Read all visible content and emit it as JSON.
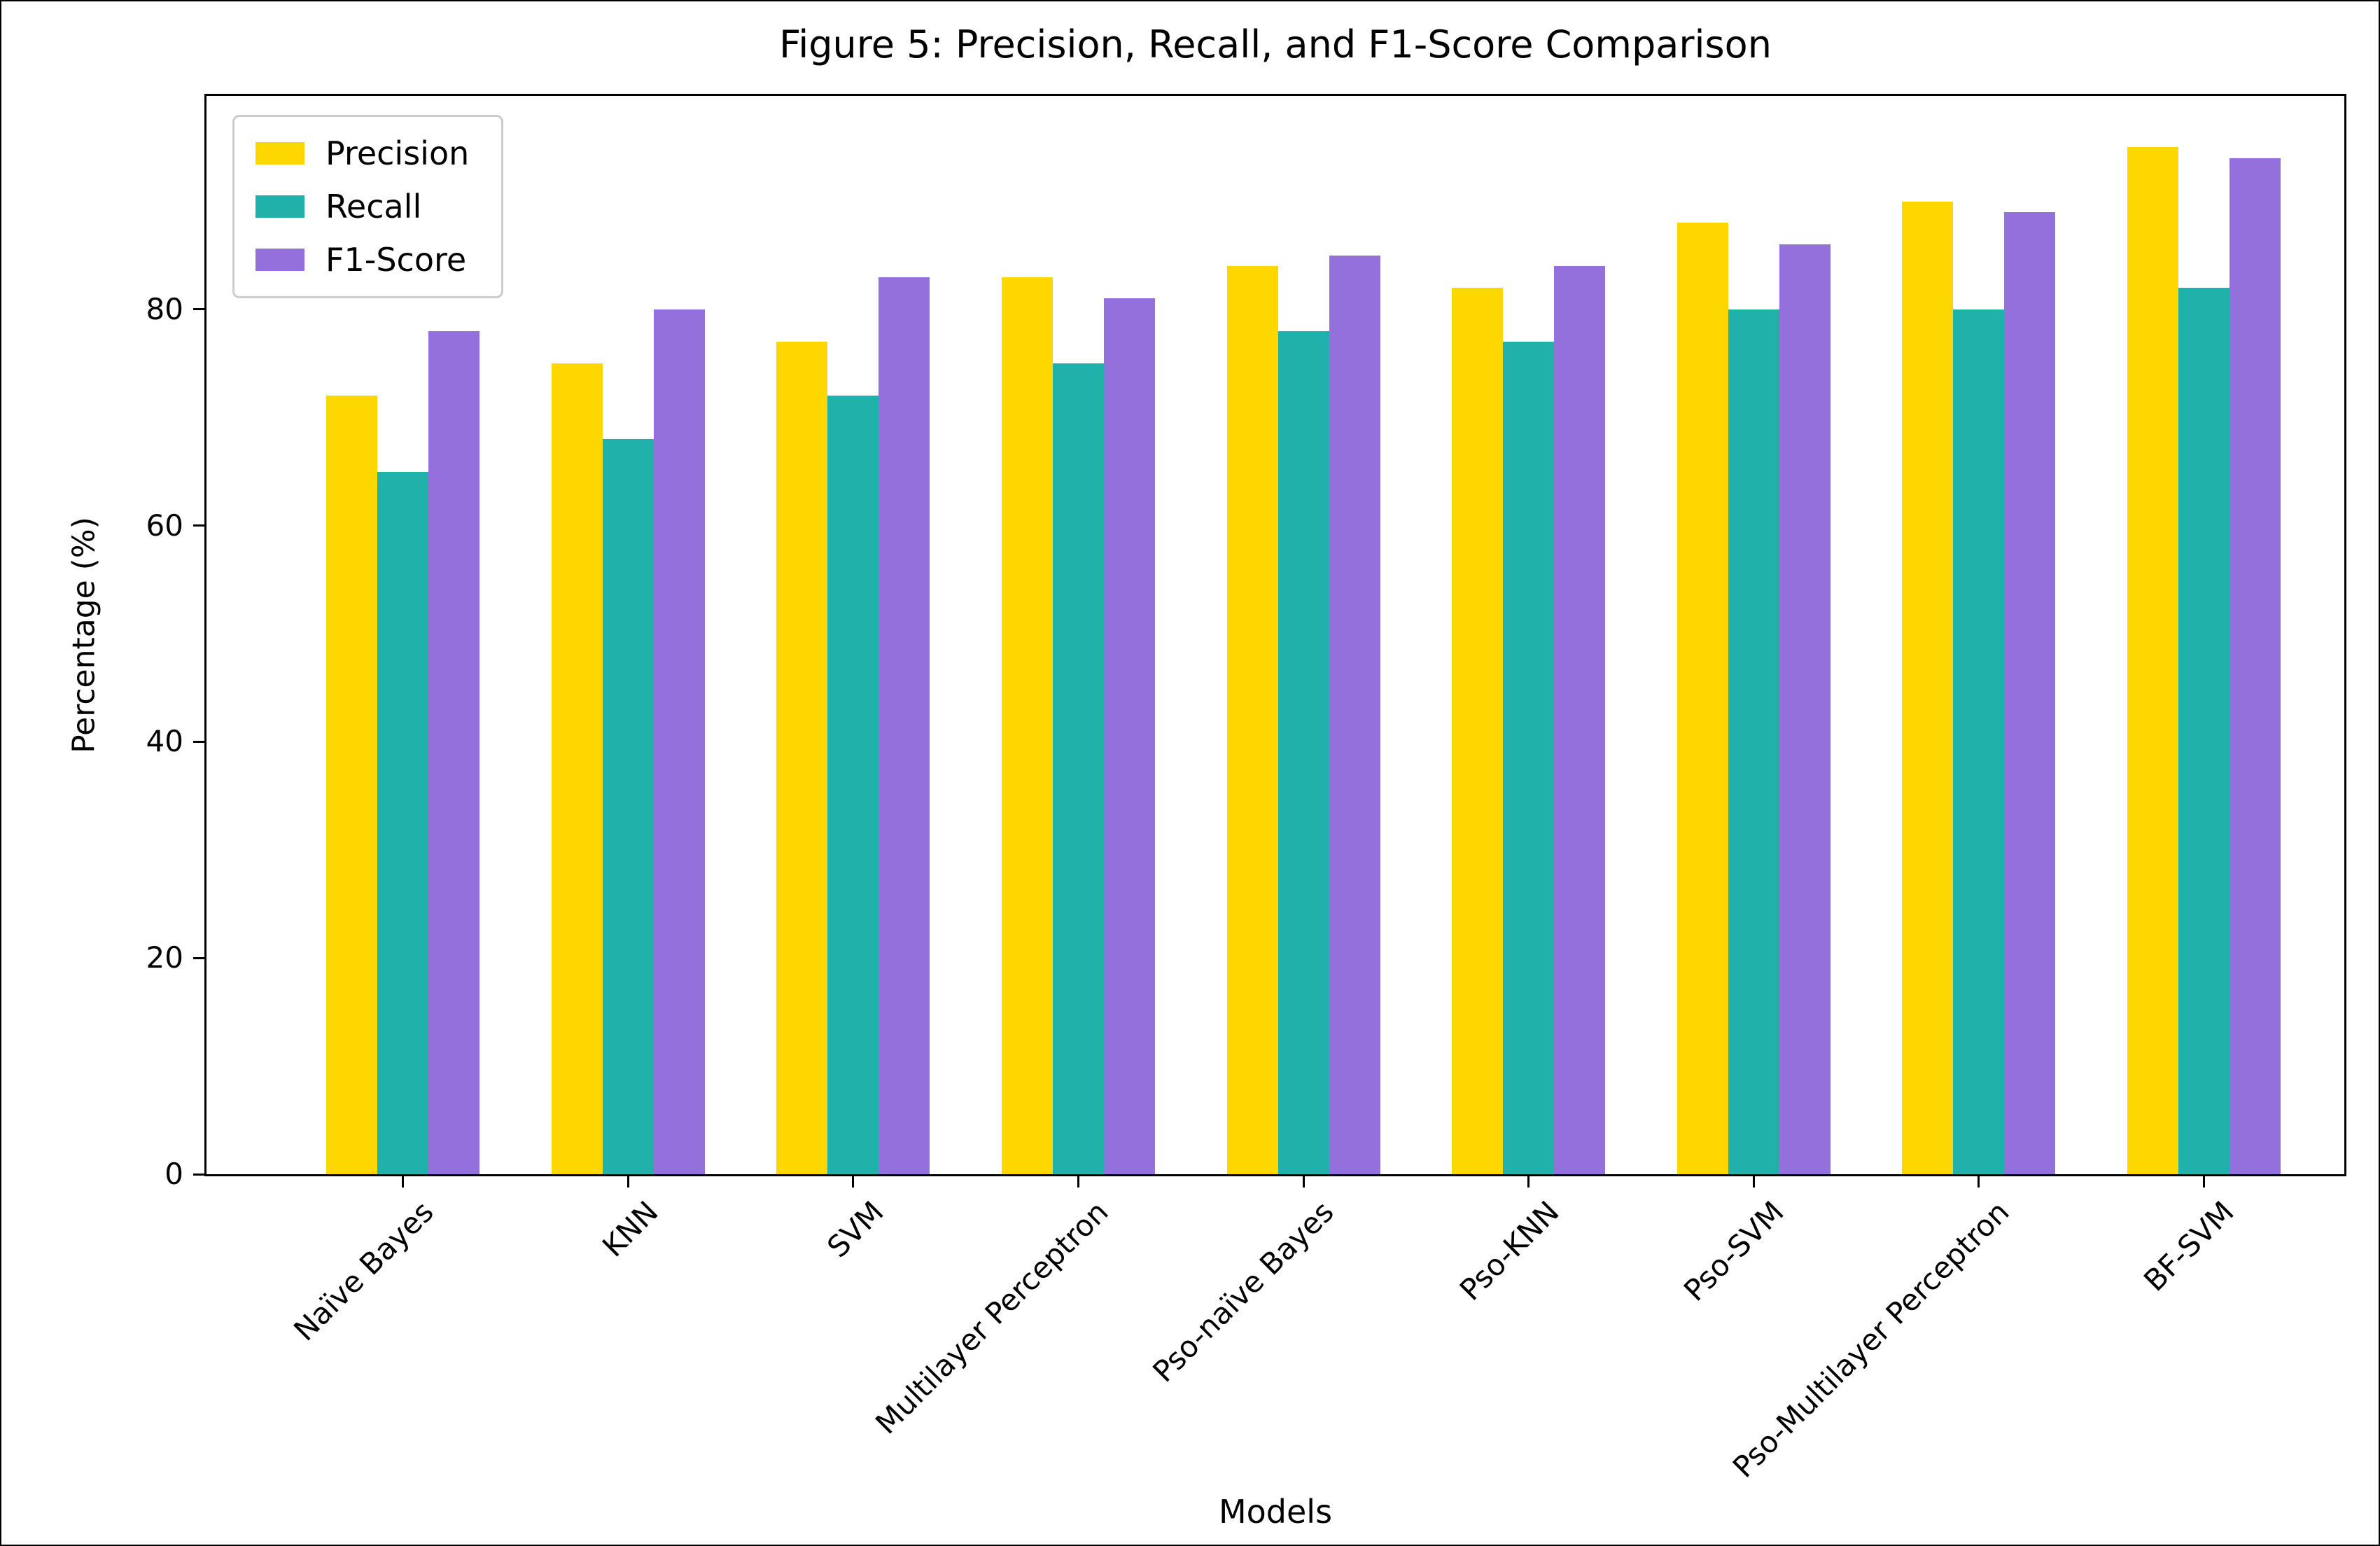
{
  "chart_data": {
    "type": "bar",
    "title": "Figure 5: Precision, Recall, and F1-Score Comparison",
    "xlabel": "Models",
    "ylabel": "Percentage (%)",
    "ylim": [
      0,
      99.75
    ],
    "yticks": [
      0,
      20,
      40,
      60,
      80
    ],
    "grid": false,
    "legend_position": "upper left",
    "categories": [
      "Naïve Bayes",
      "KNN",
      "SVM",
      "Multilayer Perceptron",
      "Pso-naïve Bayes",
      "Pso-KNN",
      "Pso-SVM",
      "Pso-Multilayer Perceptron",
      "BF-SVM"
    ],
    "series": [
      {
        "name": "Precision",
        "color": "#FFD700",
        "values": [
          72,
          75,
          77,
          83,
          84,
          82,
          88,
          90,
          95
        ]
      },
      {
        "name": "Recall",
        "color": "#20B2AA",
        "values": [
          65,
          68,
          72,
          75,
          78,
          77,
          80,
          80,
          82
        ]
      },
      {
        "name": "F1-Score",
        "color": "#9370DB",
        "values": [
          78,
          80,
          83,
          81,
          85,
          84,
          86,
          89,
          94
        ]
      }
    ]
  }
}
